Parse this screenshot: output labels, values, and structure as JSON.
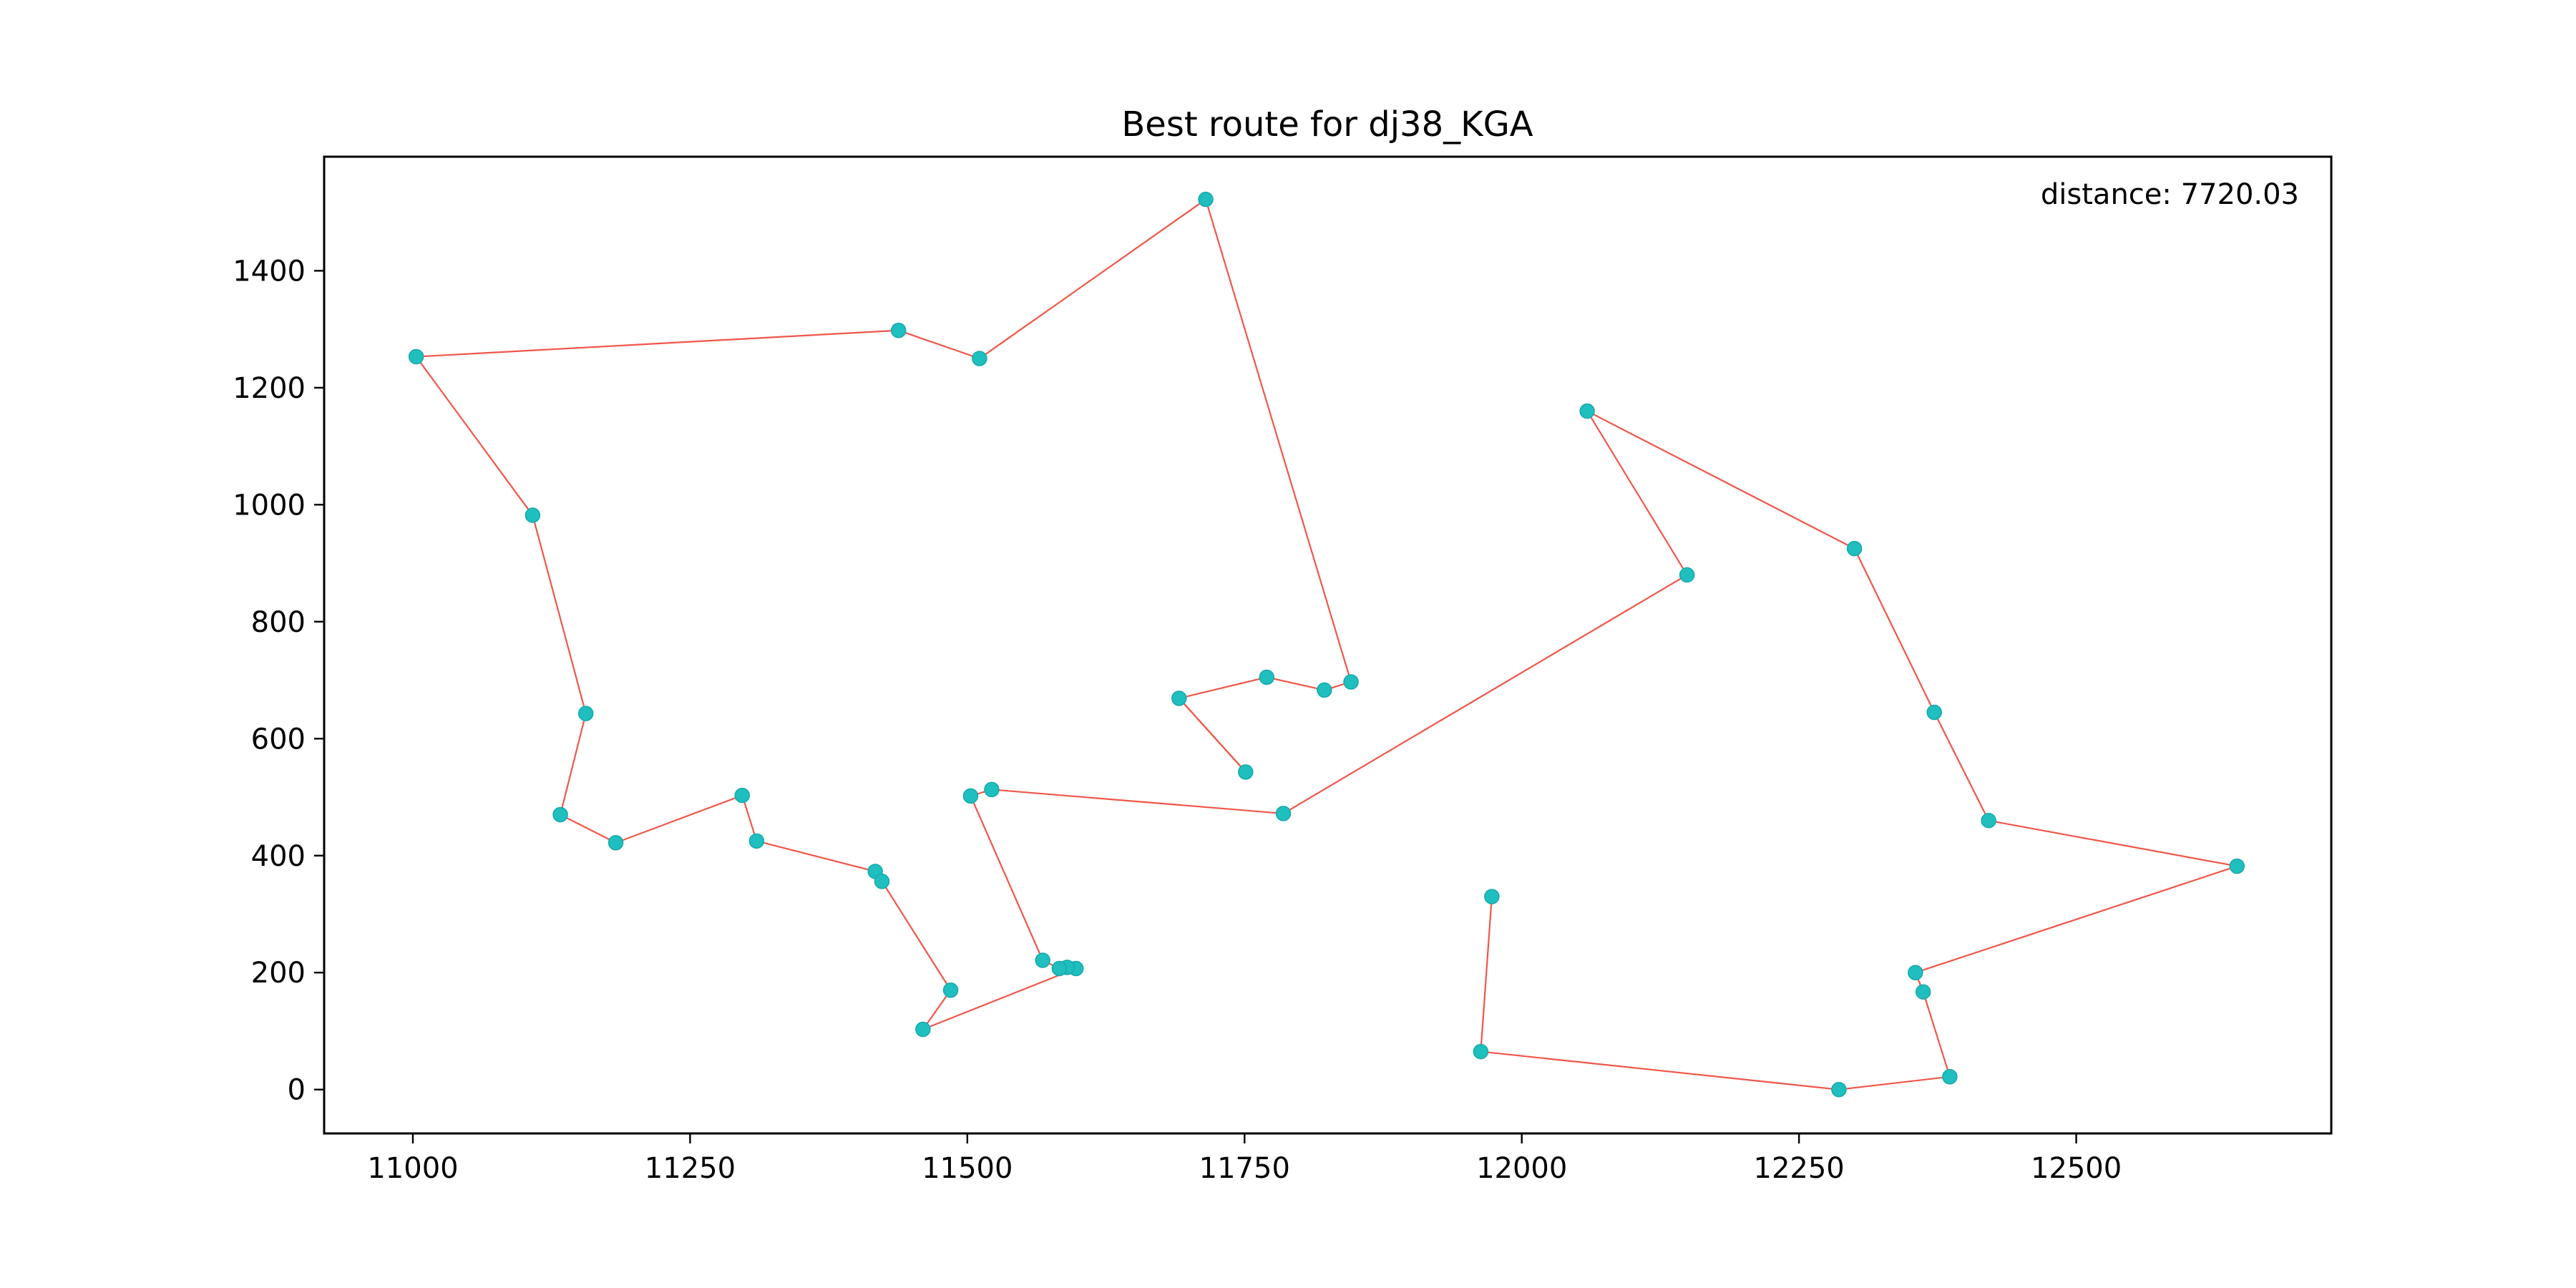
{
  "chart_data": {
    "type": "scatter",
    "title": "Best route for dj38_KGA",
    "annotation": "distance: 7720.03",
    "xlabel": "",
    "ylabel": "",
    "xlim": [
      10920,
      12730
    ],
    "ylim": [
      -75,
      1595
    ],
    "x_ticks": [
      11000,
      11250,
      11500,
      11750,
      12000,
      12250,
      12500
    ],
    "y_ticks": [
      0,
      200,
      400,
      600,
      800,
      1000,
      1200,
      1400
    ],
    "grid": false,
    "colors": {
      "line": "#f0564a",
      "marker": "#1fbfbf"
    },
    "route": [
      [
        11003,
        1253
      ],
      [
        11108,
        982
      ],
      [
        11156,
        643
      ],
      [
        11133,
        470
      ],
      [
        11183,
        422
      ],
      [
        11297,
        503
      ],
      [
        11310,
        425
      ],
      [
        11417,
        373
      ],
      [
        11423,
        356
      ],
      [
        11485,
        170
      ],
      [
        11460,
        103
      ],
      [
        11598,
        207
      ],
      [
        11590,
        209
      ],
      [
        11583,
        207
      ],
      [
        11568,
        221
      ],
      [
        11503,
        502
      ],
      [
        11522,
        513
      ],
      [
        11785,
        472
      ],
      [
        12149,
        880
      ],
      [
        12059,
        1160
      ],
      [
        12300,
        925
      ],
      [
        12372,
        645
      ],
      [
        12421,
        460
      ],
      [
        12645,
        382
      ],
      [
        12355,
        200
      ],
      [
        12362,
        167
      ],
      [
        12386,
        22
      ],
      [
        12286,
        0
      ],
      [
        11963,
        65
      ],
      [
        11973,
        330
      ]
    ],
    "route2": [
      [
        11691,
        669
      ],
      [
        11751,
        543
      ],
      [
        11691,
        669
      ],
      [
        11770,
        705
      ],
      [
        11822,
        683
      ],
      [
        11846,
        697
      ],
      [
        11715,
        1522
      ],
      [
        11511,
        1250
      ],
      [
        11438,
        1298
      ],
      [
        11003,
        1253
      ]
    ]
  }
}
